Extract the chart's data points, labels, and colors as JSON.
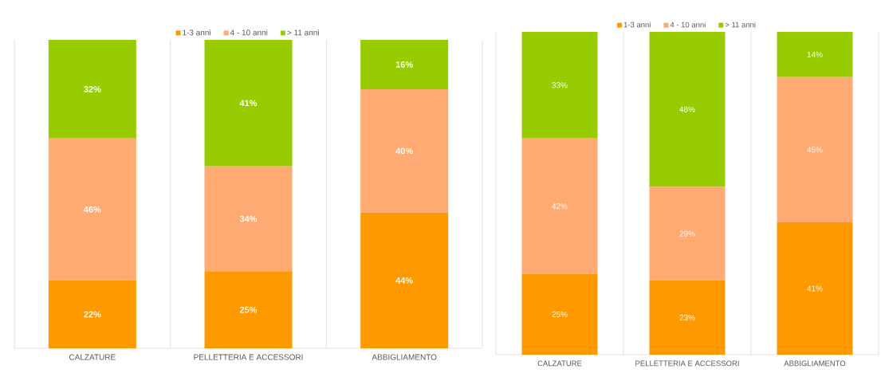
{
  "chart_data": [
    {
      "type": "bar",
      "stacked": true,
      "categories": [
        "CALZATURE",
        "PELLETTERIA  E  ACCESSORI",
        "ABBIGLIAMENTO"
      ],
      "legend": "top",
      "grid": "x",
      "series": [
        {
          "name": "1-3 anni",
          "color": "#ff9900",
          "values": [
            22,
            25,
            44
          ],
          "value_labels": [
            "22%",
            "25%",
            "44%"
          ]
        },
        {
          "name": "4 - 10 anni",
          "color": "#ffaa72",
          "values": [
            46,
            34,
            40
          ],
          "value_labels": [
            "46%",
            "34%",
            "40%"
          ]
        },
        {
          "name": "> 11 anni",
          "color": "#99cc00",
          "values": [
            32,
            41,
            16
          ],
          "value_labels": [
            "32%",
            "41%",
            "16%"
          ]
        }
      ]
    },
    {
      "type": "bar",
      "stacked": true,
      "categories": [
        "CALZATURE",
        "PELLETTERIA  E  ACCESSORI",
        "ABBIGLIAMENTO"
      ],
      "legend": "top",
      "grid": "x",
      "series": [
        {
          "name": "1-3 anni",
          "color": "#ff9900",
          "values": [
            25,
            23,
            41
          ],
          "value_labels": [
            "25%",
            "23%",
            "41%"
          ]
        },
        {
          "name": "4 - 10 anni",
          "color": "#ffaa72",
          "values": [
            42,
            29,
            45
          ],
          "value_labels": [
            "42%",
            "29%",
            "45%"
          ]
        },
        {
          "name": "> 11 anni",
          "color": "#99cc00",
          "values": [
            33,
            48,
            14
          ],
          "value_labels": [
            "33%",
            "48%",
            "14%"
          ]
        }
      ]
    }
  ]
}
